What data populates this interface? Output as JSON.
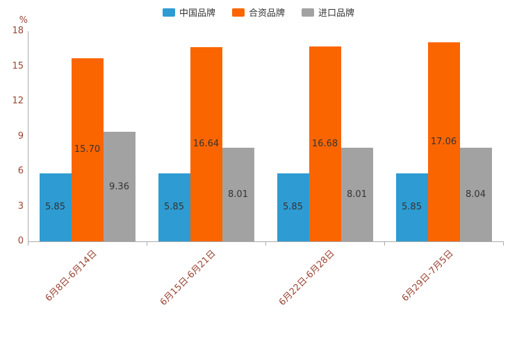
{
  "chart_data": {
    "type": "bar",
    "title": "",
    "unit_label": "%",
    "categories": [
      "6月8日-6月14日",
      "6月15日-6月21日",
      "6月22日-6月28日",
      "6月29日-7月5日"
    ],
    "series": [
      {
        "name": "中国品牌",
        "color": "#2e9cd2",
        "values": [
          5.85,
          5.85,
          5.85,
          5.85
        ]
      },
      {
        "name": "合资品牌",
        "color": "#fb6500",
        "values": [
          15.7,
          16.64,
          16.68,
          17.06
        ]
      },
      {
        "name": "进口品牌",
        "color": "#a2a2a2",
        "values": [
          9.36,
          8.01,
          8.01,
          8.04
        ]
      }
    ],
    "ylim": [
      0,
      18
    ],
    "ytick_step": 3,
    "yticks": [
      0,
      3,
      6,
      9,
      12,
      15,
      18
    ],
    "legend_position": "top",
    "grid": false,
    "value_label_decimals": 2,
    "x_label_rotation_deg": 45
  },
  "colors": {
    "axis_label": "#994433",
    "bar_label": "#333333",
    "axis_line": "#aaaaaa",
    "legend_text": "#333333"
  }
}
